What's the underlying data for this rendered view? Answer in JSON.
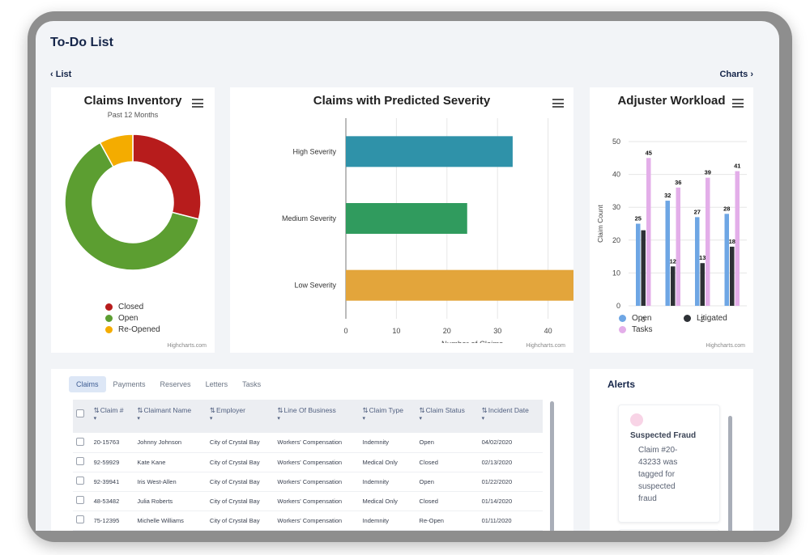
{
  "page": {
    "title": "To-Do List",
    "nav_left": "‹ List",
    "nav_right": "Charts ›"
  },
  "inventory": {
    "title": "Claims Inventory",
    "subtitle": "Past 12 Months",
    "credit": "Highcharts.com",
    "legend": [
      {
        "label": "Closed",
        "color": "#b71c1c"
      },
      {
        "label": "Open",
        "color": "#5c9e31"
      },
      {
        "label": "Re-Opened",
        "color": "#f4ac00"
      }
    ]
  },
  "severity": {
    "title": "Claims with Predicted Severity",
    "credit": "Highcharts.com"
  },
  "workload": {
    "title": "Adjuster Workload",
    "credit": "Highcharts.com",
    "legend": [
      {
        "label": "Open",
        "color": "#6ea6e4"
      },
      {
        "label": "Litigated",
        "color": "#2e3136"
      },
      {
        "label": "Tasks",
        "color": "#e3aee9"
      }
    ]
  },
  "chart_data": [
    {
      "type": "pie",
      "categories": [
        "Closed",
        "Open",
        "Re-Opened"
      ],
      "values": [
        29,
        63,
        8
      ],
      "colors": [
        "#b71c1c",
        "#5c9e31",
        "#f4ac00"
      ]
    },
    {
      "type": "bar",
      "orientation": "horizontal",
      "categories": [
        "High Severity",
        "Medium Severity",
        "Low Severity"
      ],
      "values": [
        33,
        24,
        46
      ],
      "colors": [
        "#2f92a9",
        "#309b5e",
        "#e3a53b"
      ],
      "xlabel": "Number of Claims",
      "xlim": [
        0,
        50
      ],
      "ticks": [
        0,
        10,
        20,
        30,
        40,
        50
      ]
    },
    {
      "type": "bar",
      "categories": [
        "0",
        "1",
        "2",
        "3"
      ],
      "x_tick_labels": [
        "0",
        "",
        "2",
        ""
      ],
      "ylabel": "Claim Count",
      "ylim": [
        0,
        50
      ],
      "ticks": [
        0,
        10,
        20,
        30,
        40,
        50
      ],
      "series": [
        {
          "name": "Open",
          "values": [
            25,
            32,
            27,
            28
          ],
          "color": "#6ea6e4"
        },
        {
          "name": "Litigated",
          "values": [
            23,
            12,
            13,
            18
          ],
          "color": "#2e3136"
        },
        {
          "name": "Tasks",
          "values": [
            45,
            36,
            39,
            41
          ],
          "color": "#e3aee9"
        }
      ],
      "data_labels": [
        [
          "25",
          "",
          "45"
        ],
        [
          "32",
          "12",
          "36"
        ],
        [
          "27",
          "13",
          "39"
        ],
        [
          "28",
          "18",
          "41"
        ]
      ]
    }
  ],
  "claims_table": {
    "tabs": [
      "Claims",
      "Payments",
      "Reserves",
      "Letters",
      "Tasks"
    ],
    "active_tab": 0,
    "columns": [
      "Claim #",
      "Claimant Name",
      "Employer",
      "Line Of Business",
      "Claim Type",
      "Claim Status",
      "Incident Date"
    ],
    "rows": [
      [
        "20-15763",
        "Johnny Johnson",
        "City of Crystal Bay",
        "Workers' Compensation",
        "Indemnity",
        "Open",
        "04/02/2020"
      ],
      [
        "92-59929",
        "Kate Kane",
        "City of Crystal Bay",
        "Workers' Compensation",
        "Medical Only",
        "Closed",
        "02/13/2020"
      ],
      [
        "92-39941",
        "Iris West-Allen",
        "City of Crystal Bay",
        "Workers' Compensation",
        "Indemnity",
        "Open",
        "01/22/2020"
      ],
      [
        "48-53482",
        "Julia Roberts",
        "City of Crystal Bay",
        "Workers' Compensation",
        "Medical Only",
        "Closed",
        "01/14/2020"
      ],
      [
        "75-12395",
        "Michelle Williams",
        "City of Crystal Bay",
        "Workers' Compensation",
        "Indemnity",
        "Re-Open",
        "01/11/2020"
      ]
    ]
  },
  "alerts": {
    "title": "Alerts",
    "items": [
      {
        "title": "Suspected Fraud",
        "body": "Claim #20-43233 was tagged for suspected fraud",
        "dot_color": "#f8d4e6"
      }
    ]
  }
}
